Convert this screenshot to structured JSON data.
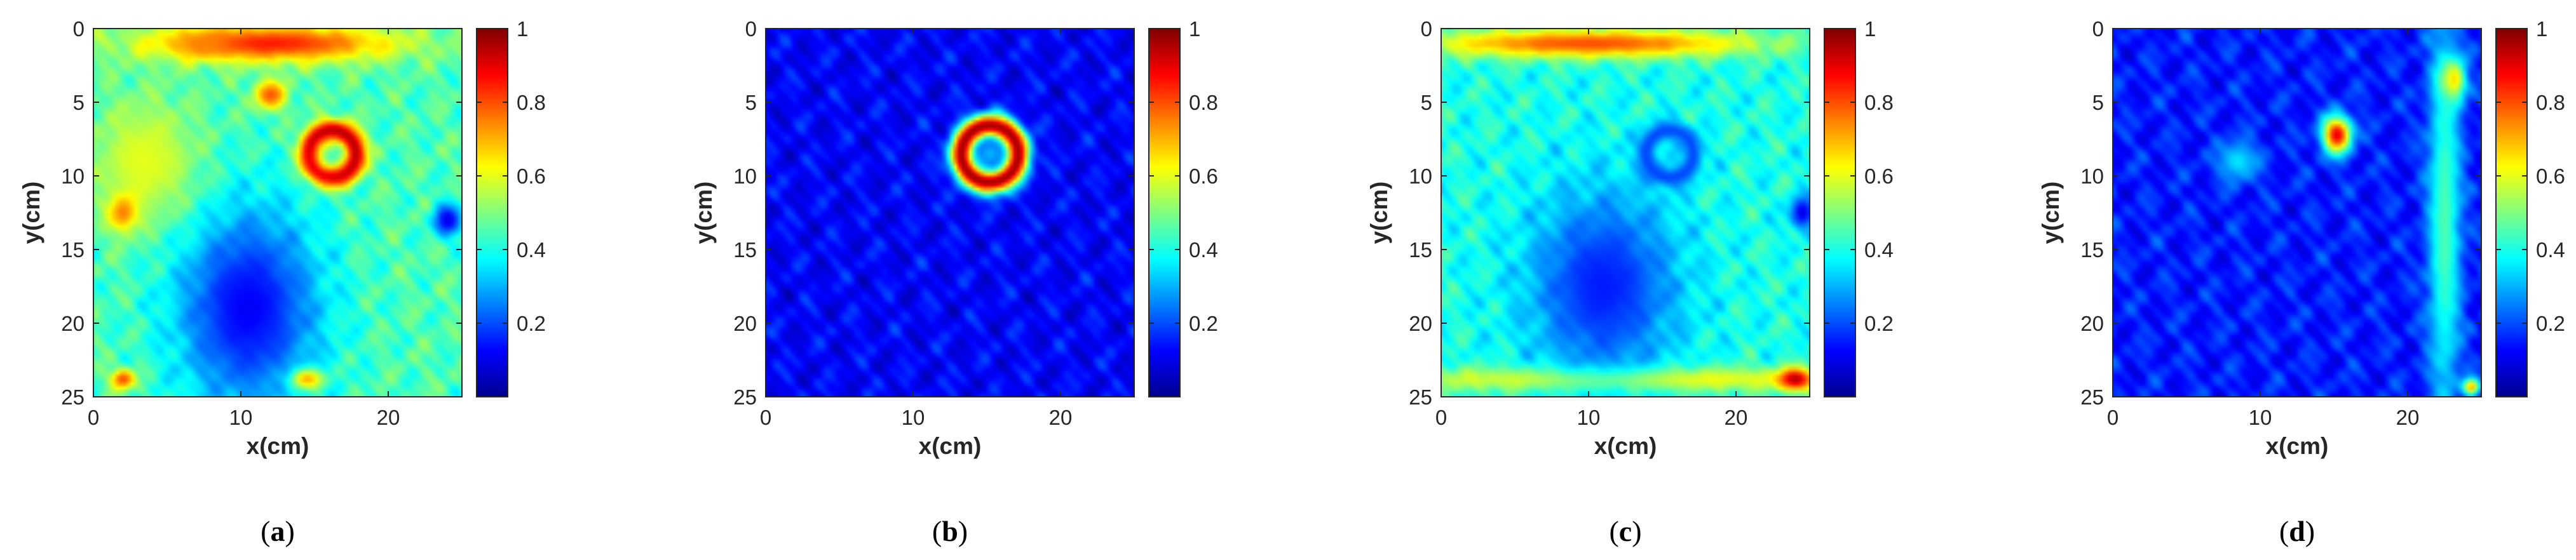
{
  "colorscale": [
    "#00008f",
    "#0000ff",
    "#0080ff",
    "#00ffff",
    "#80ff80",
    "#ffff00",
    "#ff8000",
    "#ff0000",
    "#800000"
  ],
  "chart_data": [
    {
      "type": "heatmap",
      "caption": "a",
      "xlabel": "x(cm)",
      "ylabel": "y(cm)",
      "xlim": [
        0,
        25
      ],
      "ylim": [
        0,
        25
      ],
      "clim": [
        0,
        1
      ],
      "xticks": [
        0,
        10,
        20
      ],
      "yticks": [
        0,
        5,
        10,
        15,
        20,
        25
      ],
      "colorbar_ticks": [
        "0.2",
        "0.4",
        "0.6",
        "0.8",
        "1"
      ],
      "background_level": 0.45,
      "features": [
        {
          "kind": "ring",
          "x": 16.2,
          "y": 8.5,
          "r": 1.6,
          "width": 0.55,
          "value": 0.95
        },
        {
          "kind": "blob",
          "x": 12.0,
          "y": 1.0,
          "sx": 6.0,
          "sy": 0.9,
          "value": 0.85
        },
        {
          "kind": "blob",
          "x": 7.5,
          "y": 1.0,
          "sx": 1.2,
          "sy": 0.6,
          "value": 0.75
        },
        {
          "kind": "blob",
          "x": 12.0,
          "y": 4.5,
          "sx": 0.8,
          "sy": 0.7,
          "value": 0.8
        },
        {
          "kind": "blob",
          "x": 10.5,
          "y": 19.0,
          "sx": 3.5,
          "sy": 5.0,
          "value": 0.12
        },
        {
          "kind": "blob",
          "x": 3.5,
          "y": 9.0,
          "sx": 2.5,
          "sy": 3.0,
          "value": 0.6
        },
        {
          "kind": "blob",
          "x": 2.0,
          "y": 12.5,
          "sx": 0.7,
          "sy": 0.9,
          "value": 0.75
        },
        {
          "kind": "blob",
          "x": 2.0,
          "y": 23.8,
          "sx": 0.6,
          "sy": 0.5,
          "value": 0.8
        },
        {
          "kind": "blob",
          "x": 14.5,
          "y": 23.8,
          "sx": 0.8,
          "sy": 0.5,
          "value": 0.7
        },
        {
          "kind": "blob",
          "x": 24.0,
          "y": 13.0,
          "sx": 0.7,
          "sy": 0.8,
          "value": 0.1
        }
      ]
    },
    {
      "type": "heatmap",
      "caption": "b",
      "xlabel": "x(cm)",
      "ylabel": "y(cm)",
      "xlim": [
        0,
        25
      ],
      "ylim": [
        0,
        25
      ],
      "clim": [
        0,
        1
      ],
      "xticks": [
        0,
        10,
        20
      ],
      "yticks": [
        0,
        5,
        10,
        15,
        20,
        25
      ],
      "colorbar_ticks": [
        "0.2",
        "0.4",
        "0.6",
        "0.8",
        "1"
      ],
      "background_level": 0.12,
      "features": [
        {
          "kind": "ring",
          "x": 15.2,
          "y": 8.5,
          "r": 1.9,
          "width": 0.6,
          "value": 0.98
        },
        {
          "kind": "blob",
          "x": 15.2,
          "y": 8.5,
          "sx": 0.7,
          "sy": 0.7,
          "value": 0.3
        }
      ]
    },
    {
      "type": "heatmap",
      "caption": "c",
      "xlabel": "x(cm)",
      "ylabel": "y(cm)",
      "xlim": [
        0,
        25
      ],
      "ylim": [
        0,
        25
      ],
      "clim": [
        0,
        1
      ],
      "xticks": [
        0,
        10,
        20
      ],
      "yticks": [
        0,
        5,
        10,
        15,
        20,
        25
      ],
      "colorbar_ticks": [
        "0.2",
        "0.4",
        "0.6",
        "0.8",
        "1"
      ],
      "background_level": 0.4,
      "features": [
        {
          "kind": "blob",
          "x": 10.0,
          "y": 1.0,
          "sx": 8.0,
          "sy": 0.7,
          "value": 0.8
        },
        {
          "kind": "blob",
          "x": 12.5,
          "y": 23.8,
          "sx": 12.0,
          "sy": 0.6,
          "value": 0.65
        },
        {
          "kind": "blob",
          "x": 24.0,
          "y": 23.8,
          "sx": 0.8,
          "sy": 0.5,
          "value": 0.95
        },
        {
          "kind": "ring",
          "x": 15.5,
          "y": 8.5,
          "r": 1.6,
          "width": 0.5,
          "value": 0.2
        },
        {
          "kind": "blob",
          "x": 11.0,
          "y": 17.5,
          "sx": 3.5,
          "sy": 4.5,
          "value": 0.15
        },
        {
          "kind": "blob",
          "x": 24.5,
          "y": 12.5,
          "sx": 0.6,
          "sy": 0.8,
          "value": 0.1
        }
      ]
    },
    {
      "type": "heatmap",
      "caption": "d",
      "xlabel": "x(cm)",
      "ylabel": "y(cm)",
      "xlim": [
        0,
        25
      ],
      "ylim": [
        0,
        25
      ],
      "clim": [
        0,
        1
      ],
      "xticks": [
        0,
        10,
        20
      ],
      "yticks": [
        0,
        5,
        10,
        15,
        20,
        25
      ],
      "colorbar_ticks": [
        "0.2",
        "0.4",
        "0.6",
        "0.8",
        "1"
      ],
      "background_level": 0.15,
      "features": [
        {
          "kind": "blob",
          "x": 15.2,
          "y": 7.2,
          "sx": 0.7,
          "sy": 0.9,
          "value": 0.9
        },
        {
          "kind": "blob",
          "x": 23.0,
          "y": 3.5,
          "sx": 0.6,
          "sy": 1.0,
          "value": 0.85
        },
        {
          "kind": "blob",
          "x": 22.5,
          "y": 13.0,
          "sx": 0.8,
          "sy": 10.0,
          "value": 0.45
        },
        {
          "kind": "blob",
          "x": 24.3,
          "y": 24.3,
          "sx": 0.4,
          "sy": 0.4,
          "value": 0.7
        },
        {
          "kind": "blob",
          "x": 8.5,
          "y": 9.0,
          "sx": 1.0,
          "sy": 1.0,
          "value": 0.35
        }
      ]
    }
  ]
}
